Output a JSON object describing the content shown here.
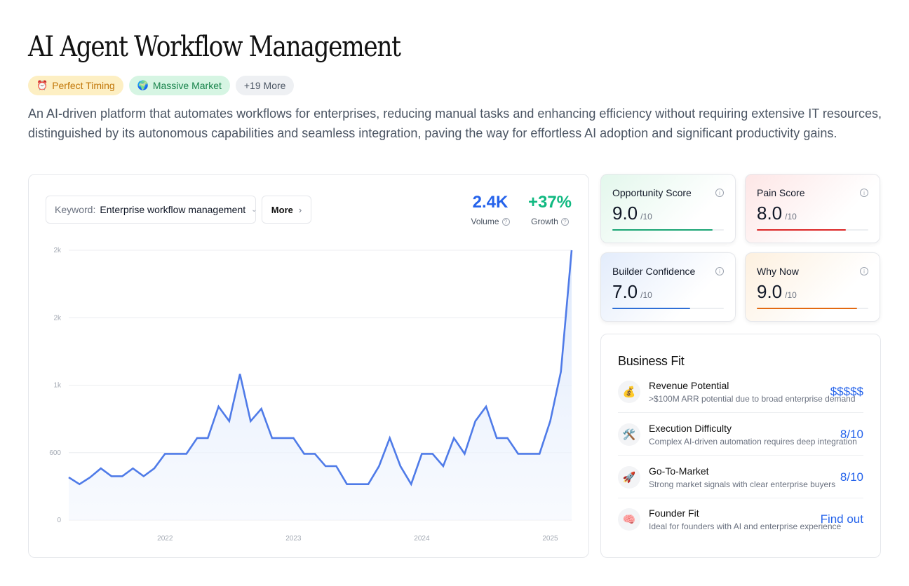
{
  "page": {
    "title": "AI Agent Workflow Management",
    "description": "An AI-driven platform that automates workflows for enterprises, reducing manual tasks and enhancing efficiency without requiring extensive IT resources, distinguished by its autonomous capabilities and seamless integration, paving the way for effortless AI adoption and significant productivity gains."
  },
  "badges": [
    {
      "icon": "⏰",
      "label": "Perfect Timing"
    },
    {
      "icon": "🌍",
      "label": "Massive Market"
    },
    {
      "label": "+19 More"
    }
  ],
  "trend": {
    "keyword_label": "Keyword:",
    "keyword_value": "Enterprise workflow management",
    "more_label": "More",
    "volume_value": "2.4K",
    "volume_label": "Volume",
    "growth_value": "+37%",
    "growth_label": "Growth"
  },
  "chart_data": {
    "type": "area",
    "title": "",
    "xlabel": "",
    "ylabel": "",
    "y_tick_labels": [
      "0",
      "600",
      "1k",
      "2k",
      "2k"
    ],
    "y_tick_values": [
      0,
      600,
      1200,
      1800,
      2400
    ],
    "ylim": [
      0,
      2400
    ],
    "x_tick_labels": [
      "2022",
      "2023",
      "2024",
      "2025"
    ],
    "x_tick_index": [
      9,
      21,
      33,
      45
    ],
    "grid": true,
    "color": "#4f7be8",
    "values": [
      380,
      320,
      380,
      460,
      390,
      390,
      460,
      390,
      460,
      590,
      590,
      590,
      730,
      730,
      1010,
      880,
      1300,
      880,
      990,
      730,
      730,
      730,
      590,
      590,
      480,
      480,
      320,
      320,
      320,
      480,
      730,
      480,
      320,
      590,
      590,
      480,
      730,
      590,
      880,
      1010,
      730,
      730,
      590,
      590,
      590,
      880,
      1320,
      2400
    ]
  },
  "scores": [
    {
      "title": "Opportunity Score",
      "value": "9.0",
      "max": "/10",
      "fraction": 0.9,
      "color": "#1aa574"
    },
    {
      "title": "Pain Score",
      "value": "8.0",
      "max": "/10",
      "fraction": 0.8,
      "color": "#dc2626"
    },
    {
      "title": "Builder Confidence",
      "value": "7.0",
      "max": "/10",
      "fraction": 0.7,
      "color": "#2f6fd6"
    },
    {
      "title": "Why Now",
      "value": "9.0",
      "max": "/10",
      "fraction": 0.9,
      "color": "#e26a12"
    }
  ],
  "business_fit": {
    "title": "Business Fit",
    "rows": [
      {
        "icon": "💰",
        "label": "Revenue Potential",
        "sub": ">$100M ARR potential due to broad enterprise demand",
        "value": "$$$$$"
      },
      {
        "icon": "🛠️",
        "label": "Execution Difficulty",
        "sub": "Complex AI-driven automation requires deep integration",
        "value": "8/10"
      },
      {
        "icon": "🚀",
        "label": "Go-To-Market",
        "sub": "Strong market signals with clear enterprise buyers",
        "value": "8/10"
      },
      {
        "icon": "🧠",
        "label": "Founder Fit",
        "sub": "Ideal for founders with AI and enterprise experience",
        "value": "Find out"
      }
    ]
  }
}
